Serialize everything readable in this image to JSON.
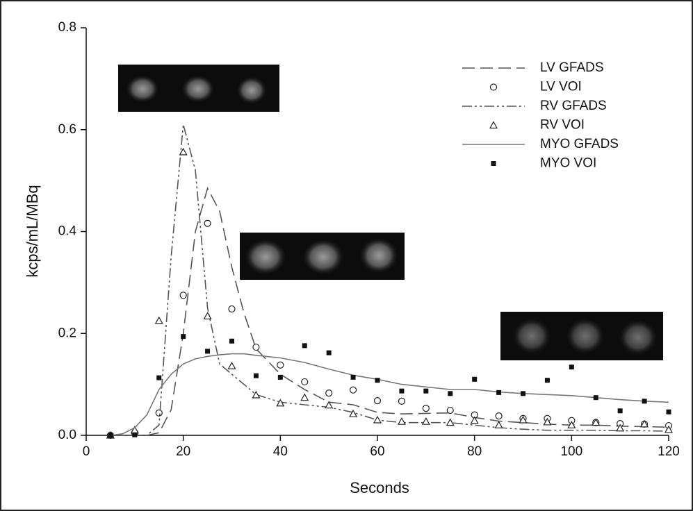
{
  "chart_data": {
    "type": "line",
    "xlabel": "Seconds",
    "ylabel": "kcps/mL/MBq",
    "xlim": [
      0,
      120
    ],
    "ylim": [
      0,
      0.8
    ],
    "xticks": [
      0,
      20,
      40,
      60,
      80,
      100,
      120
    ],
    "yticks": [
      {
        "value": 0,
        "label": "0.0"
      },
      0.2,
      0.4,
      0.6,
      0.8
    ],
    "legend": "upper right",
    "series": [
      {
        "name": "LV GFADS",
        "style": "line",
        "dash": "18 8",
        "color": "#555555",
        "x": [
          5,
          7.5,
          10,
          12.5,
          15,
          17.5,
          20,
          22.5,
          25,
          27.5,
          30,
          32.5,
          35,
          40,
          45,
          50,
          55,
          60,
          65,
          70,
          75,
          80,
          85,
          90,
          95,
          100,
          105,
          110,
          115,
          120
        ],
        "values": [
          0,
          0,
          0,
          0,
          0.005,
          0.05,
          0.2,
          0.4,
          0.485,
          0.44,
          0.33,
          0.24,
          0.17,
          0.12,
          0.09,
          0.065,
          0.06,
          0.045,
          0.042,
          0.043,
          0.044,
          0.035,
          0.028,
          0.025,
          0.022,
          0.02,
          0.02,
          0.018,
          0.017,
          0.016
        ]
      },
      {
        "name": "LV VOI",
        "style": "circle",
        "color": "#222222",
        "x": [
          5,
          10,
          15,
          20,
          25,
          30,
          35,
          40,
          45,
          50,
          55,
          60,
          65,
          70,
          75,
          80,
          85,
          90,
          95,
          100,
          105,
          110,
          115,
          120
        ],
        "values": [
          0,
          0.005,
          0.044,
          0.275,
          0.416,
          0.248,
          0.173,
          0.138,
          0.105,
          0.083,
          0.089,
          0.068,
          0.067,
          0.053,
          0.049,
          0.04,
          0.038,
          0.033,
          0.033,
          0.029,
          0.025,
          0.023,
          0.022,
          0.019
        ]
      },
      {
        "name": "RV GFADS",
        "style": "line",
        "dash": "14 4 3 4 3 4",
        "color": "#555555",
        "x": [
          5,
          7.5,
          10,
          12.5,
          15,
          17.5,
          20,
          22.5,
          25,
          27.5,
          30,
          32.5,
          35,
          40,
          45,
          50,
          55,
          60,
          65,
          70,
          75,
          80,
          85,
          90,
          95,
          100,
          105,
          110,
          115,
          120
        ],
        "values": [
          0,
          0,
          0,
          0,
          0.02,
          0.35,
          0.61,
          0.52,
          0.25,
          0.14,
          0.12,
          0.1,
          0.08,
          0.065,
          0.06,
          0.055,
          0.045,
          0.03,
          0.025,
          0.025,
          0.025,
          0.02,
          0.015,
          0.012,
          0.01,
          0.01,
          0.01,
          0.009,
          0.009,
          0.008
        ]
      },
      {
        "name": "RV VOI",
        "style": "triangle",
        "color": "#222222",
        "x": [
          5,
          10,
          15,
          20,
          25,
          30,
          35,
          40,
          45,
          50,
          55,
          60,
          65,
          70,
          75,
          80,
          85,
          90,
          95,
          100,
          105,
          110,
          115,
          120
        ],
        "values": [
          0,
          0.01,
          0.225,
          0.556,
          0.234,
          0.136,
          0.079,
          0.063,
          0.074,
          0.059,
          0.042,
          0.03,
          0.027,
          0.027,
          0.025,
          0.029,
          0.02,
          0.03,
          0.026,
          0.02,
          0.025,
          0.014,
          0.022,
          0.011
        ]
      },
      {
        "name": "MYO GFADS",
        "style": "line",
        "dash": "none",
        "color": "#777777",
        "x": [
          5,
          7.5,
          10,
          12.5,
          15,
          17.5,
          20,
          22.5,
          25,
          27.5,
          30,
          32.5,
          35,
          40,
          45,
          50,
          55,
          60,
          65,
          70,
          75,
          80,
          85,
          90,
          95,
          100,
          105,
          110,
          115,
          120
        ],
        "values": [
          0,
          0.003,
          0.015,
          0.04,
          0.09,
          0.12,
          0.14,
          0.15,
          0.155,
          0.158,
          0.16,
          0.16,
          0.157,
          0.152,
          0.143,
          0.13,
          0.118,
          0.11,
          0.1,
          0.095,
          0.09,
          0.09,
          0.085,
          0.082,
          0.08,
          0.078,
          0.074,
          0.07,
          0.067,
          0.065
        ]
      },
      {
        "name": "MYO VOI",
        "style": "square",
        "color": "#111111",
        "x": [
          5,
          10,
          15,
          20,
          25,
          30,
          35,
          40,
          45,
          50,
          55,
          60,
          65,
          70,
          75,
          80,
          85,
          90,
          95,
          100,
          105,
          110,
          115,
          120
        ],
        "values": [
          0,
          0.001,
          0.113,
          0.194,
          0.165,
          0.185,
          0.117,
          0.114,
          0.176,
          0.162,
          0.114,
          0.108,
          0.087,
          0.087,
          0.082,
          0.11,
          0.084,
          0.082,
          0.108,
          0.134,
          0.074,
          0.048,
          0.067,
          0.046
        ]
      }
    ]
  }
}
